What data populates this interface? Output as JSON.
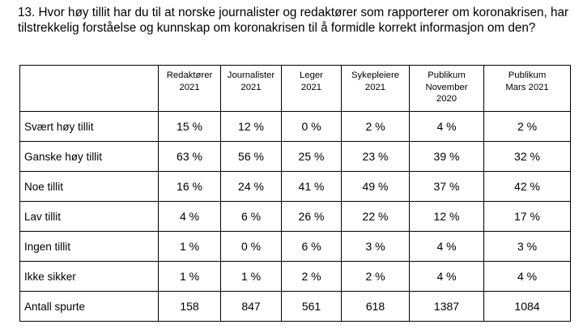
{
  "question": "13. Hvor høy tillit har du til at norske journalister og redaktører som rapporterer om koronakrisen, har tilstrekkelig forståelse og kunnskap om koronakrisen til å formidle korrekt informasjon om den?",
  "columns": [
    {
      "lines": [
        "Redaktører",
        "2021"
      ]
    },
    {
      "lines": [
        "Journalister",
        "2021"
      ]
    },
    {
      "lines": [
        "Leger",
        "2021"
      ]
    },
    {
      "lines": [
        "Sykepleiere",
        "2021"
      ]
    },
    {
      "lines": [
        "Publikum",
        "November",
        "2020"
      ]
    },
    {
      "lines": [
        "Publikum",
        "Mars 2021"
      ]
    }
  ],
  "rows": [
    {
      "label": "Svært høy tillit",
      "values": [
        "15 %",
        "12 %",
        "0 %",
        "2 %",
        "4 %",
        "2 %"
      ]
    },
    {
      "label": "Ganske høy tillit",
      "values": [
        "63 %",
        "56 %",
        "25 %",
        "23 %",
        "39 %",
        "32 %"
      ]
    },
    {
      "label": "Noe tillit",
      "values": [
        "16 %",
        "24 %",
        "41 %",
        "49 %",
        "37 %",
        "42 %"
      ]
    },
    {
      "label": "Lav tillit",
      "values": [
        "4 %",
        "6 %",
        "26 %",
        "22 %",
        "12 %",
        "17 %"
      ]
    },
    {
      "label": "Ingen tillit",
      "values": [
        "1 %",
        "0 %",
        "6 %",
        "3 %",
        "4 %",
        "3 %"
      ]
    },
    {
      "label": "Ikke sikker",
      "values": [
        "1 %",
        "1 %",
        "2 %",
        "2 %",
        "4 %",
        "4 %"
      ]
    },
    {
      "label": "Antall spurte",
      "values": [
        "158",
        "847",
        "561",
        "618",
        "1387",
        "1084"
      ]
    }
  ]
}
